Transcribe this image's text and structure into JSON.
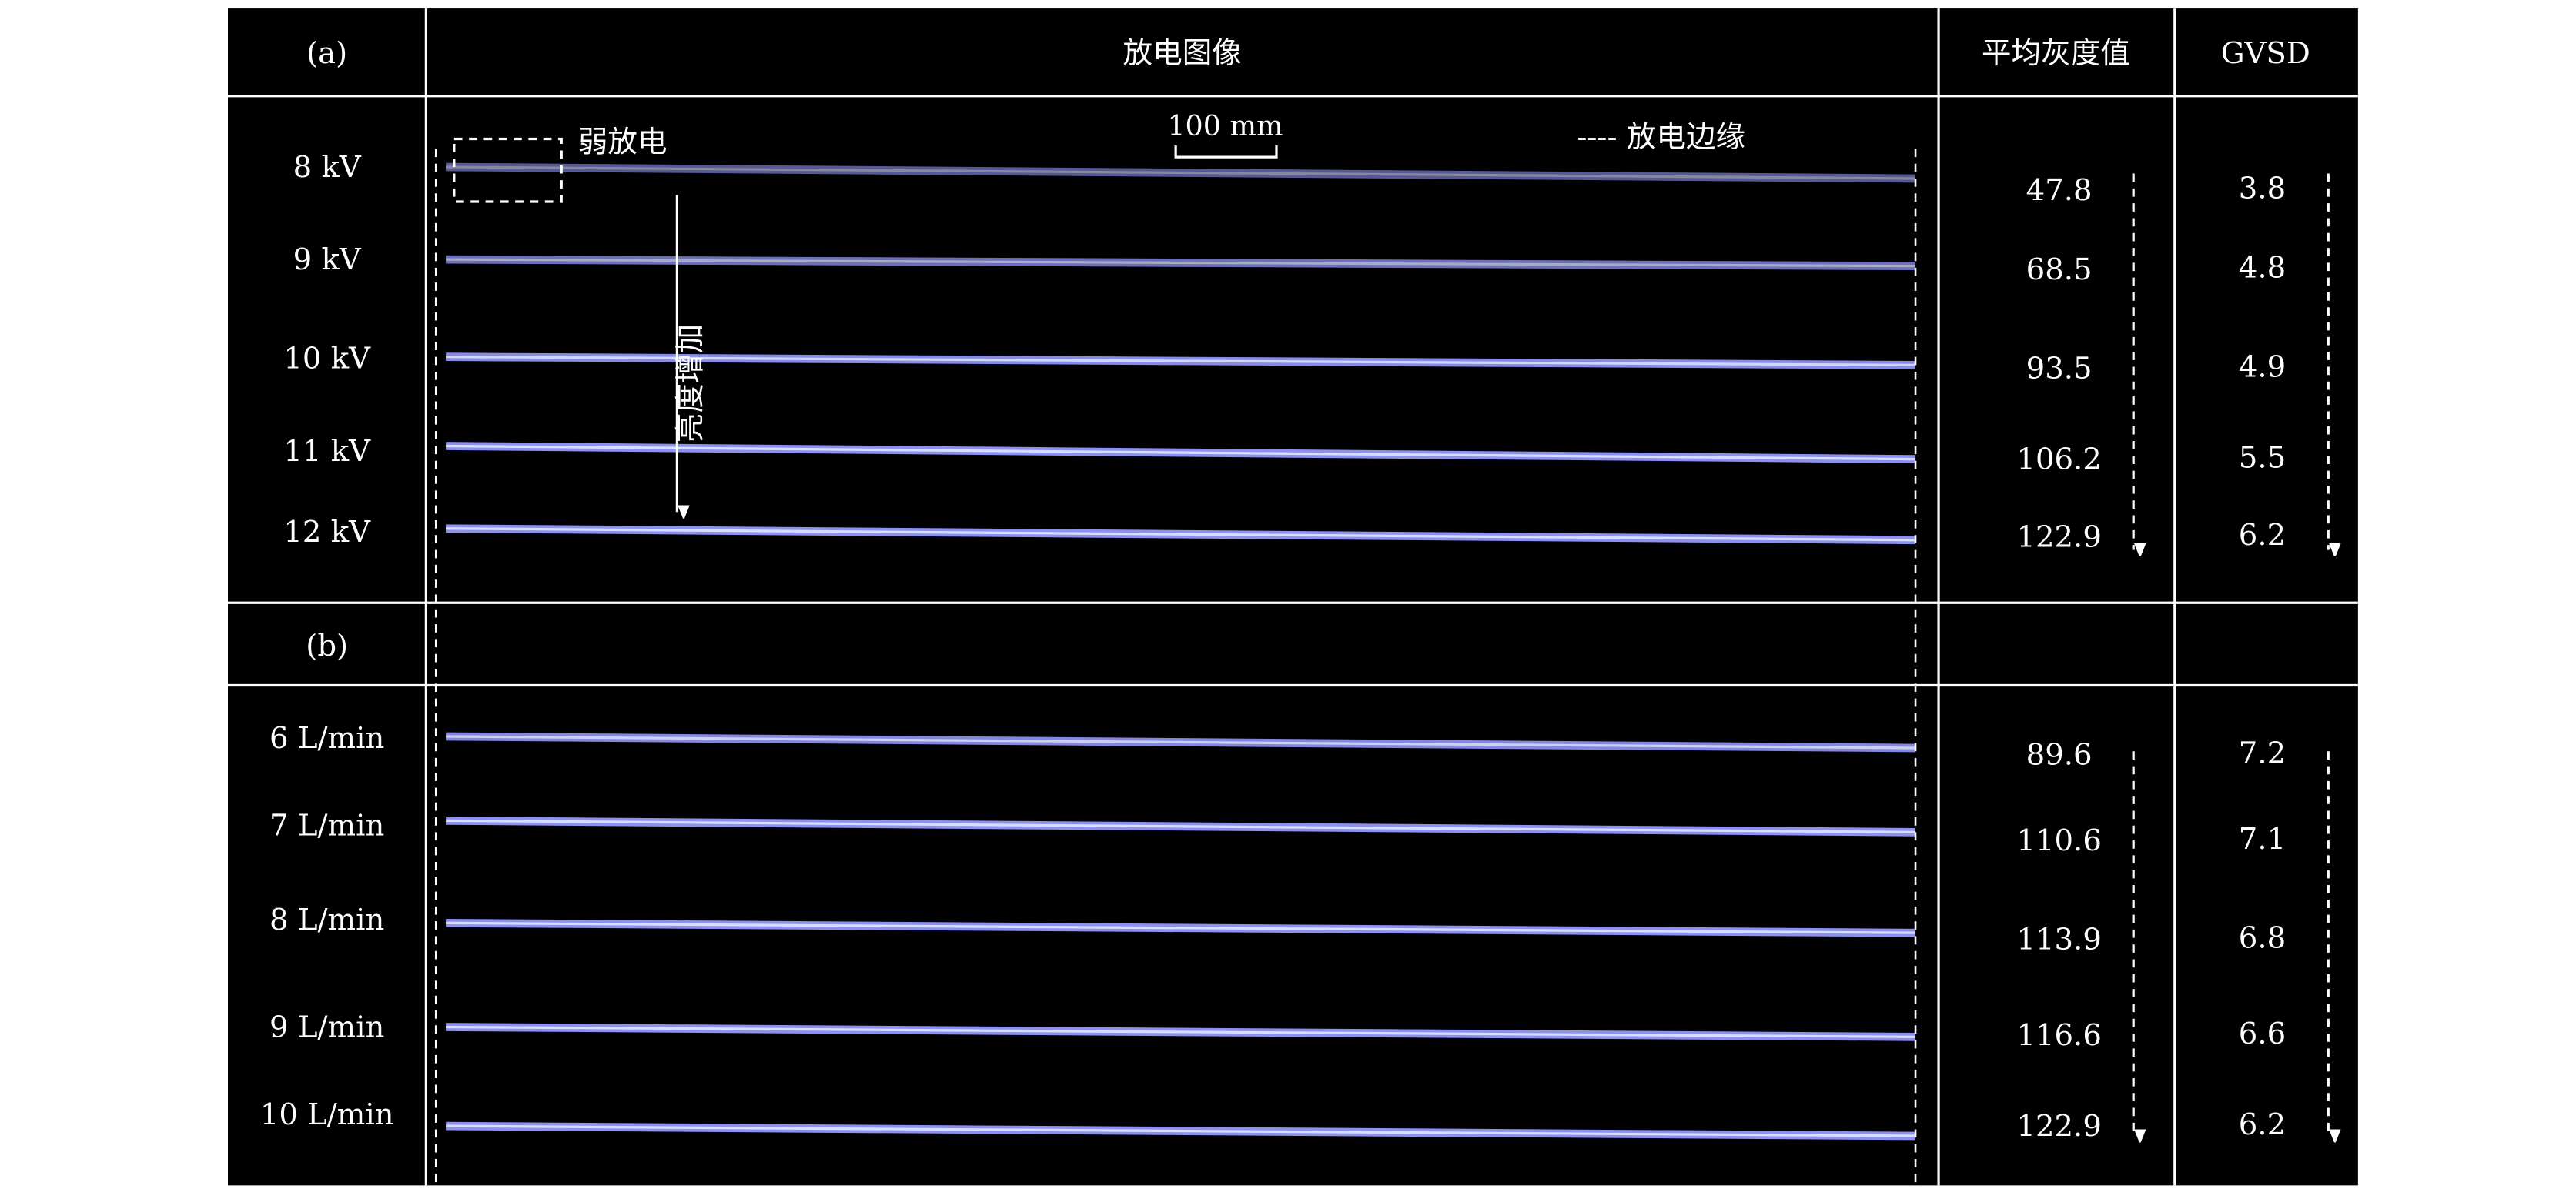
{
  "header": {
    "panel_a_label": "(a)",
    "image_col": "放电图像",
    "mean_col": "平均灰度值",
    "gvsd_col": "GVSD"
  },
  "annotations": {
    "weak_discharge": "弱放电",
    "scale_bar": "100 mm",
    "edge_legend": "---- 放电边缘",
    "brightness_increase": "亮度增加"
  },
  "panel_b_label": "(b)",
  "colors": {
    "background": "#000000",
    "grid": "#ffffff",
    "discharge": "#8c90f0"
  },
  "section_a": [
    {
      "label": "8 kV",
      "mean": "47.8",
      "gvsd": "3.8"
    },
    {
      "label": "9 kV",
      "mean": "68.5",
      "gvsd": "4.8"
    },
    {
      "label": "10 kV",
      "mean": "93.5",
      "gvsd": "4.9"
    },
    {
      "label": "11 kV",
      "mean": "106.2",
      "gvsd": "5.5"
    },
    {
      "label": "12 kV",
      "mean": "122.9",
      "gvsd": "6.2"
    }
  ],
  "section_b": [
    {
      "label": "6 L/min",
      "mean": "89.6",
      "gvsd": "7.2"
    },
    {
      "label": "7 L/min",
      "mean": "110.6",
      "gvsd": "7.1"
    },
    {
      "label": "8 L/min",
      "mean": "113.9",
      "gvsd": "6.8"
    },
    {
      "label": "9 L/min",
      "mean": "116.6",
      "gvsd": "6.6"
    },
    {
      "label": "10 L/min",
      "mean": "122.9",
      "gvsd": "6.2"
    }
  ]
}
